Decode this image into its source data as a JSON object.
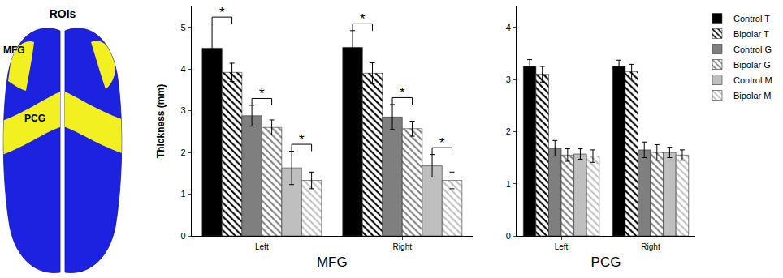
{
  "diagram": {
    "title": "ROIs",
    "labels": [
      "MFG",
      "PCG"
    ]
  },
  "chart_data": [
    {
      "type": "bar",
      "xlabel": "MFG",
      "ylabel": "Thickness (mm)",
      "categories": [
        "Left",
        "Right"
      ],
      "ylim": [
        0,
        5.5
      ],
      "yticks": [
        0,
        1,
        2,
        3,
        4,
        5
      ],
      "grid": false,
      "series": [
        {
          "name": "Control T",
          "color": "#000000",
          "marker": "solid",
          "values": [
            4.5,
            4.52
          ],
          "errors": [
            0.58,
            0.4
          ]
        },
        {
          "name": "Bipolar T",
          "color": "#000000",
          "marker": "hatched",
          "values": [
            3.92,
            3.9
          ],
          "errors": [
            0.22,
            0.25
          ]
        },
        {
          "name": "Control G",
          "color": "#7f7f7f",
          "marker": "solid",
          "values": [
            2.88,
            2.85
          ],
          "errors": [
            0.25,
            0.3
          ]
        },
        {
          "name": "Bipolar G",
          "color": "#7f7f7f",
          "marker": "hatched",
          "values": [
            2.6,
            2.57
          ],
          "errors": [
            0.18,
            0.18
          ]
        },
        {
          "name": "Control M",
          "color": "#bfbfbf",
          "marker": "solid",
          "values": [
            1.63,
            1.68
          ],
          "errors": [
            0.4,
            0.27
          ]
        },
        {
          "name": "Bipolar M",
          "color": "#bfbfbf",
          "marker": "hatched",
          "values": [
            1.33,
            1.33
          ],
          "errors": [
            0.2,
            0.2
          ]
        }
      ],
      "significance": [
        {
          "category": "Left",
          "between": [
            "Control T",
            "Bipolar T"
          ],
          "label": "*"
        },
        {
          "category": "Left",
          "between": [
            "Control G",
            "Bipolar G"
          ],
          "label": "*"
        },
        {
          "category": "Left",
          "between": [
            "Control M",
            "Bipolar M"
          ],
          "label": "*"
        },
        {
          "category": "Right",
          "between": [
            "Control T",
            "Bipolar T"
          ],
          "label": "*"
        },
        {
          "category": "Right",
          "between": [
            "Control G",
            "Bipolar G"
          ],
          "label": "*"
        },
        {
          "category": "Right",
          "between": [
            "Control M",
            "Bipolar M"
          ],
          "label": "*"
        }
      ]
    },
    {
      "type": "bar",
      "xlabel": "PCG",
      "categories": [
        "Left",
        "Right"
      ],
      "ylim": [
        0,
        4.4
      ],
      "yticks": [
        0,
        1,
        2,
        3,
        4
      ],
      "grid": false,
      "legend": "right",
      "series": [
        {
          "name": "Control T",
          "color": "#000000",
          "marker": "solid",
          "values": [
            3.25,
            3.25
          ],
          "errors": [
            0.13,
            0.12
          ]
        },
        {
          "name": "Bipolar T",
          "color": "#000000",
          "marker": "hatched",
          "values": [
            3.1,
            3.15
          ],
          "errors": [
            0.15,
            0.14
          ]
        },
        {
          "name": "Control G",
          "color": "#7f7f7f",
          "marker": "solid",
          "values": [
            1.68,
            1.65
          ],
          "errors": [
            0.15,
            0.15
          ]
        },
        {
          "name": "Bipolar G",
          "color": "#7f7f7f",
          "marker": "hatched",
          "values": [
            1.55,
            1.6
          ],
          "errors": [
            0.12,
            0.15
          ]
        },
        {
          "name": "Control M",
          "color": "#bfbfbf",
          "marker": "solid",
          "values": [
            1.57,
            1.6
          ],
          "errors": [
            0.1,
            0.1
          ]
        },
        {
          "name": "Bipolar M",
          "color": "#bfbfbf",
          "marker": "hatched",
          "values": [
            1.53,
            1.55
          ],
          "errors": [
            0.12,
            0.1
          ]
        }
      ]
    }
  ]
}
